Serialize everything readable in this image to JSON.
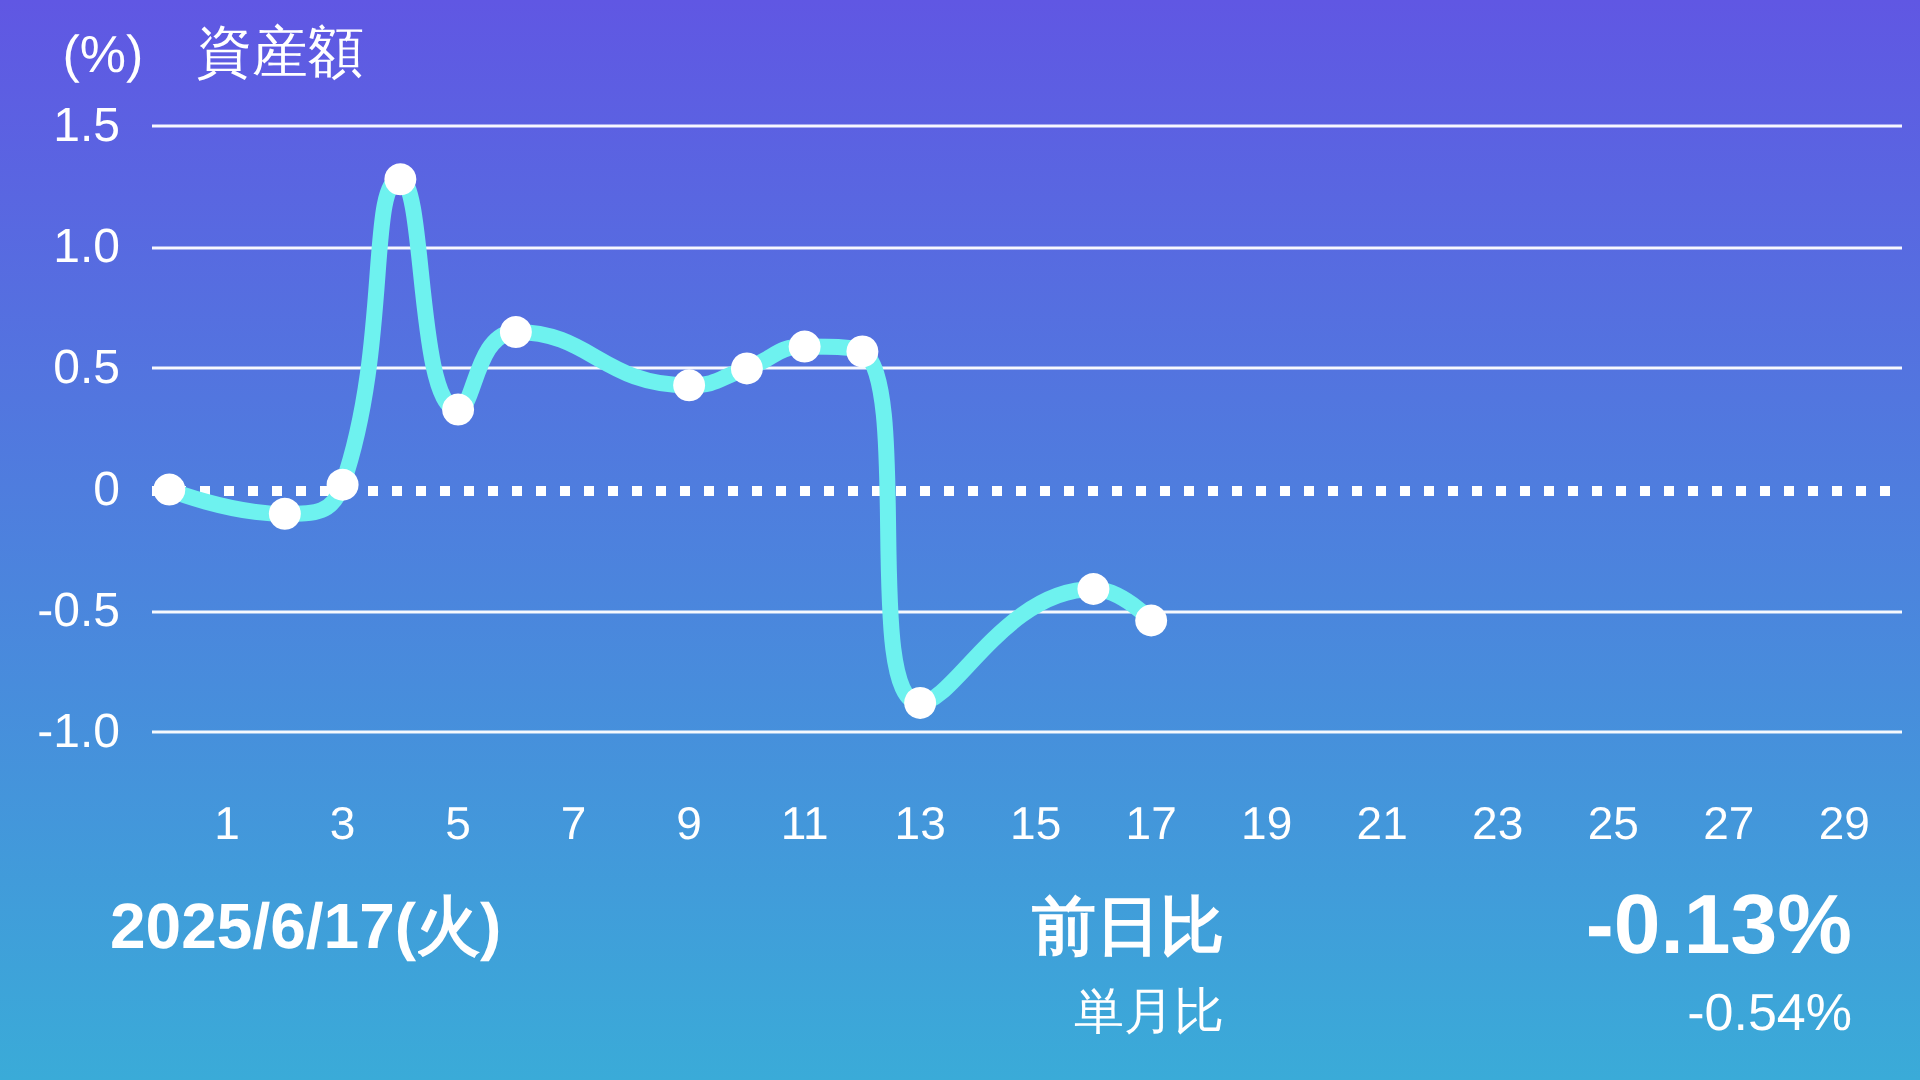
{
  "chart_data": {
    "type": "line",
    "title": "資産額",
    "ylabel": "(%)",
    "x": [
      0,
      2,
      3,
      4,
      5,
      6,
      9,
      10,
      11,
      12,
      13,
      16,
      17
    ],
    "series": [
      {
        "color": "#6ef2ef",
        "values": [
          0,
          -0.1,
          0.02,
          1.28,
          0.33,
          0.65,
          0.43,
          0.5,
          0.59,
          0.57,
          -0.88,
          -0.41,
          -0.54
        ]
      }
    ],
    "xlim": [
      -0.3,
      30
    ],
    "xticks": [
      1,
      3,
      5,
      7,
      9,
      11,
      13,
      15,
      17,
      19,
      21,
      23,
      25,
      27,
      29
    ],
    "ylim": [
      -1.0,
      1.5
    ],
    "yticks": [
      {
        "value": -1,
        "label": "-1.0"
      },
      -0.5,
      0,
      0.5,
      {
        "value": 1,
        "label": "1.0"
      },
      1.5
    ],
    "ref_lines": [
      {
        "axis": "y",
        "value": 0,
        "color": "#ffffff",
        "line_style": "dotted"
      }
    ],
    "grid": "y",
    "marker": "circle",
    "line_style": "solid",
    "annotations": [
      "2025/6/17(火)",
      "前日比",
      "-0.13%",
      "単月比",
      "-0.54%"
    ]
  }
}
